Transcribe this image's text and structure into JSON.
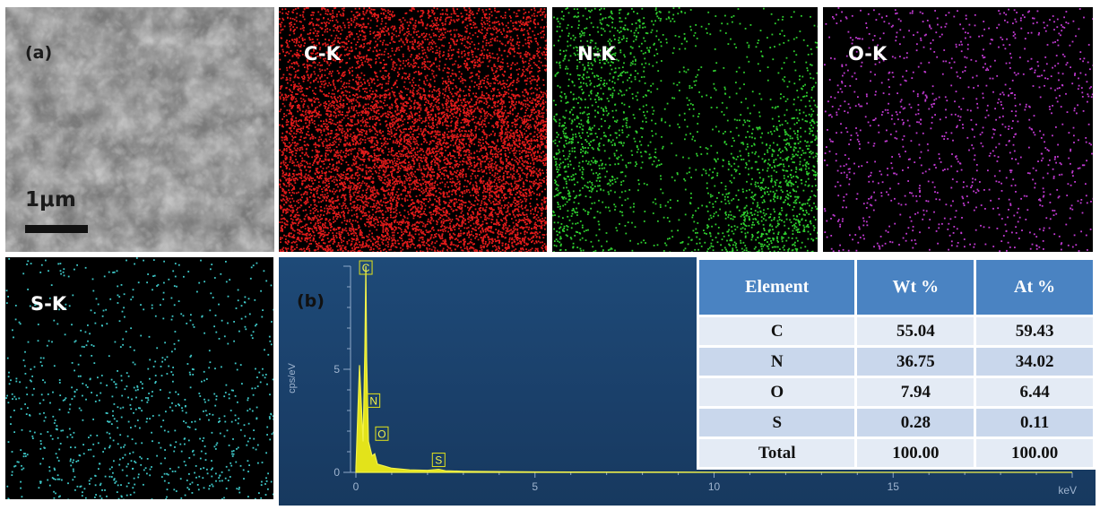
{
  "panels": {
    "sem": {
      "label": "(a)",
      "scale": "1μm"
    },
    "maps": [
      {
        "id": "c",
        "label": "C-K",
        "color": "#e21b1b"
      },
      {
        "id": "n",
        "label": "N-K",
        "color": "#2fcf2f"
      },
      {
        "id": "o",
        "label": "O-K",
        "color": "#c23ad3"
      },
      {
        "id": "s",
        "label": "S-K",
        "color": "#3ec7c7"
      }
    ]
  },
  "eds": {
    "label": "(b)",
    "ylabel": "cps/eV",
    "xunit": "keV",
    "x_ticks": [
      "0",
      "5",
      "10",
      "15"
    ],
    "y_ticks": [
      "0",
      "5"
    ],
    "peaks": [
      {
        "element": "C",
        "kev": 0.277
      },
      {
        "element": "N",
        "kev": 0.392
      },
      {
        "element": "O",
        "kev": 0.525
      },
      {
        "element": "S",
        "kev": 2.31
      }
    ]
  },
  "table": {
    "headers": [
      "Element",
      "Wt %",
      "At %"
    ],
    "rows": [
      [
        "C",
        "55.04",
        "59.43"
      ],
      [
        "N",
        "36.75",
        "34.02"
      ],
      [
        "O",
        "7.94",
        "6.44"
      ],
      [
        "S",
        "0.28",
        "0.11"
      ],
      [
        "Total",
        "100.00",
        "100.00"
      ]
    ]
  },
  "chart_data": {
    "type": "line",
    "xlabel": "keV",
    "ylabel": "cps/eV",
    "xlim": [
      0,
      20
    ],
    "ylim": [
      0,
      10
    ],
    "series": [
      {
        "x": [
          0.0,
          0.1,
          0.2,
          0.25,
          0.277,
          0.3,
          0.35,
          0.392,
          0.45,
          0.525,
          0.6,
          0.8,
          1.0,
          1.5,
          2.0,
          2.31,
          2.5,
          3.0,
          5.0,
          10.0,
          15.0,
          20.0
        ],
        "values": [
          0.2,
          5.2,
          1.5,
          6.0,
          10.0,
          5.5,
          1.5,
          1.2,
          0.8,
          0.9,
          0.4,
          0.3,
          0.2,
          0.12,
          0.1,
          0.15,
          0.08,
          0.05,
          0.02,
          0.01,
          0.0,
          0.0
        ]
      }
    ],
    "table": {
      "columns": [
        "Element",
        "Wt %",
        "At %"
      ],
      "rows": [
        [
          "C",
          55.04,
          59.43
        ],
        [
          "N",
          36.75,
          34.02
        ],
        [
          "O",
          7.94,
          6.44
        ],
        [
          "S",
          0.28,
          0.11
        ],
        [
          "Total",
          100.0,
          100.0
        ]
      ]
    }
  }
}
